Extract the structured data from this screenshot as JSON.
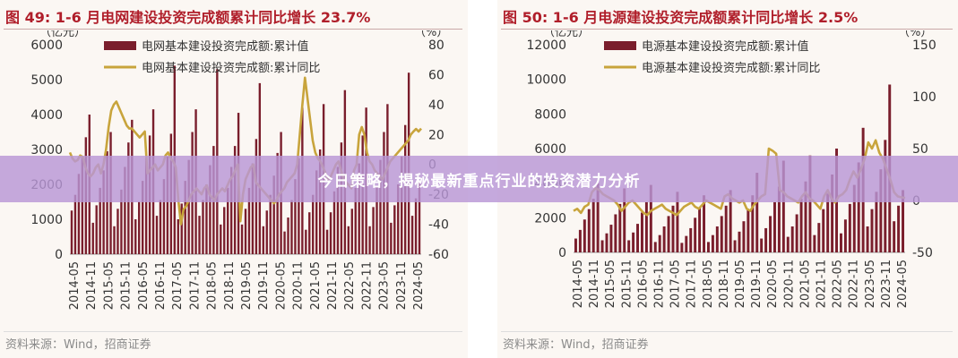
{
  "banner": {
    "text": "今日策略，揭秘最新重点行业的投资潜力分析"
  },
  "charts": [
    {
      "title": "图 49: 1-6 月电网建设投资完成额累计同比增长 23.7%",
      "source": "资料来源：Wind，招商证券",
      "chart_data": {
        "type": "bar+line",
        "left_unit": "（亿元）",
        "right_unit": "（%）",
        "ylim_left": [
          0,
          6000
        ],
        "ylim_right": [
          -60,
          80
        ],
        "yticks_left": [
          "6000",
          "5000",
          "4000",
          "3000",
          "2000",
          "1000",
          "0"
        ],
        "yticks_right": [
          "80",
          "60",
          "40",
          "20",
          "0",
          "-20",
          "-40",
          "-60"
        ],
        "x_ticks": [
          "2014-05",
          "2014-11",
          "2015-05",
          "2015-11",
          "2016-05",
          "2016-11",
          "2017-05",
          "2017-11",
          "2018-05",
          "2018-11",
          "2019-05",
          "2019-11",
          "2020-05",
          "2020-11",
          "2021-05",
          "2021-11",
          "2022-05",
          "2022-11",
          "2023-05",
          "2023-11",
          "2024-05"
        ],
        "series": [
          {
            "name": "电网基本建设投资完成额:累计值",
            "type": "bar",
            "axis": "left",
            "color": "#7a1e2c",
            "values": [
              1250,
              1700,
              2300,
              2800,
              3350,
              4000,
              900,
              1400,
              1900,
              2400,
              2950,
              3500,
              800,
              1300,
              1850,
              2500,
              3200,
              3850,
              1000,
              1500,
              2100,
              2750,
              3400,
              4150,
              1100,
              1550,
              2150,
              2800,
              3450,
              5400,
              1000,
              1450,
              2100,
              2700,
              3500,
              4150,
              1100,
              1550,
              2000,
              2550,
              3100,
              5300,
              850,
              1350,
              1900,
              2500,
              3100,
              4050,
              850,
              1300,
              1900,
              2600,
              3300,
              4900,
              800,
              1250,
              1700,
              2250,
              2900,
              3500,
              650,
              1050,
              1550,
              2150,
              2750,
              4200,
              700,
              1200,
              1700,
              2400,
              3000,
              4300,
              700,
              1200,
              1800,
              2500,
              3200,
              4700,
              800,
              1300,
              1900,
              2600,
              3400,
              4200,
              800,
              1350,
              1950,
              2700,
              3500,
              4300,
              900,
              1400,
              2000,
              2800,
              3700,
              5200,
              1100,
              1600,
              2100
            ]
          },
          {
            "name": "电网基本建设投资完成额:累计同比",
            "type": "line",
            "axis": "right",
            "color": "#c8a43c",
            "values": [
              8,
              4,
              2,
              3,
              6,
              5,
              -2,
              -6,
              -8,
              -6,
              -2,
              0,
              -6,
              0,
              10,
              25,
              36,
              40,
              42,
              38,
              34,
              30,
              26,
              24,
              24,
              22,
              20,
              18,
              20,
              22,
              -6,
              -4,
              -2,
              0,
              -4,
              -2,
              0,
              6,
              8,
              4,
              2,
              -2,
              -24,
              -40,
              -30,
              -28,
              -24,
              -20,
              -18,
              -16,
              -18,
              -20,
              -16,
              -14,
              -20,
              -22,
              -24,
              -20,
              -18,
              -16,
              -18,
              -14,
              -10,
              -8,
              -4,
              0,
              -38,
              -20,
              -10,
              -6,
              -2,
              0,
              -12,
              -14,
              -16,
              -18,
              -20,
              -22,
              -24,
              -26,
              -24,
              -20,
              -18,
              -16,
              -12,
              -10,
              -8,
              -6,
              0,
              20,
              40,
              58,
              44,
              30,
              16,
              8,
              4,
              2,
              -2,
              -6,
              -10,
              -8,
              -4,
              0,
              2,
              -4,
              -10,
              -12,
              -14,
              -16,
              -4,
              0,
              20,
              25,
              20,
              8,
              2,
              0,
              -4,
              -6,
              -8,
              -10,
              -6,
              -2,
              2,
              4,
              6,
              8,
              10,
              12,
              14,
              16,
              20,
              22,
              23.7,
              22,
              24
            ]
          }
        ]
      }
    },
    {
      "title": "图 50: 1-6 月电源建设投资完成额累计同比增长 2.5%",
      "source": "资料来源：Wind，招商证券",
      "chart_data": {
        "type": "bar+line",
        "left_unit": "（亿元）",
        "right_unit": "（%）",
        "ylim_left": [
          0,
          12000
        ],
        "ylim_right": [
          -50,
          150
        ],
        "yticks_left": [
          "12000",
          "10000",
          "8000",
          "6000",
          "4000",
          "2000",
          "0"
        ],
        "yticks_right": [
          "150",
          "100",
          "50",
          "0",
          "-50"
        ],
        "x_ticks": [
          "2014-05",
          "2014-11",
          "2015-05",
          "2015-11",
          "2016-05",
          "2016-11",
          "2017-05",
          "2017-11",
          "2018-05",
          "2018-11",
          "2019-05",
          "2019-11",
          "2020-05",
          "2020-11",
          "2021-05",
          "2021-11",
          "2022-05",
          "2022-11",
          "2023-05",
          "2023-11",
          "2024-05"
        ],
        "series": [
          {
            "name": "电源基本建设投资完成额:累计值",
            "type": "bar",
            "axis": "left",
            "color": "#7a1e2c",
            "values": [
              800,
              1300,
              1900,
              2500,
              3100,
              4000,
              700,
              1100,
              1600,
              2200,
              2800,
              3700,
              700,
              1150,
              1650,
              2300,
              2900,
              3900,
              600,
              1000,
              1500,
              2100,
              2700,
              3500,
              550,
              950,
              1400,
              2000,
              2600,
              3300,
              600,
              1000,
              1500,
              2100,
              2700,
              3600,
              700,
              1200,
              1800,
              2500,
              3300,
              4600,
              800,
              1400,
              2100,
              2900,
              3800,
              5300,
              900,
              1500,
              2200,
              3100,
              4100,
              5600,
              1000,
              1700,
              2500,
              3400,
              4500,
              6000,
              1100,
              1900,
              2800,
              3900,
              5200,
              7200,
              1500,
              2500,
              3500,
              4800,
              6500,
              9700,
              1800,
              2700,
              3600
            ]
          },
          {
            "name": "电源基本建设投资完成额:累计同比",
            "type": "line",
            "axis": "right",
            "color": "#c8a43c",
            "values": [
              -10,
              -8,
              -12,
              -6,
              -4,
              8,
              12,
              10,
              6,
              4,
              2,
              0,
              -4,
              -10,
              -6,
              -2,
              0,
              -4,
              -8,
              -12,
              -14,
              -10,
              -8,
              -6,
              -4,
              -8,
              -10,
              -12,
              -14,
              -10,
              -6,
              -4,
              -2,
              -6,
              -8,
              -4,
              0,
              -2,
              -4,
              -6,
              -8,
              4,
              6,
              2,
              0,
              -2,
              0,
              -8,
              -10,
              -4,
              0,
              4,
              6,
              50,
              48,
              45,
              10,
              8,
              4,
              2,
              0,
              -2,
              4,
              8,
              2,
              0,
              -4,
              -8,
              4,
              10,
              2,
              -2,
              4,
              6,
              10,
              20,
              28,
              22,
              30,
              40,
              56,
              50,
              58,
              46,
              40,
              30,
              20,
              8,
              4,
              3,
              2.5
            ]
          }
        ]
      }
    }
  ]
}
